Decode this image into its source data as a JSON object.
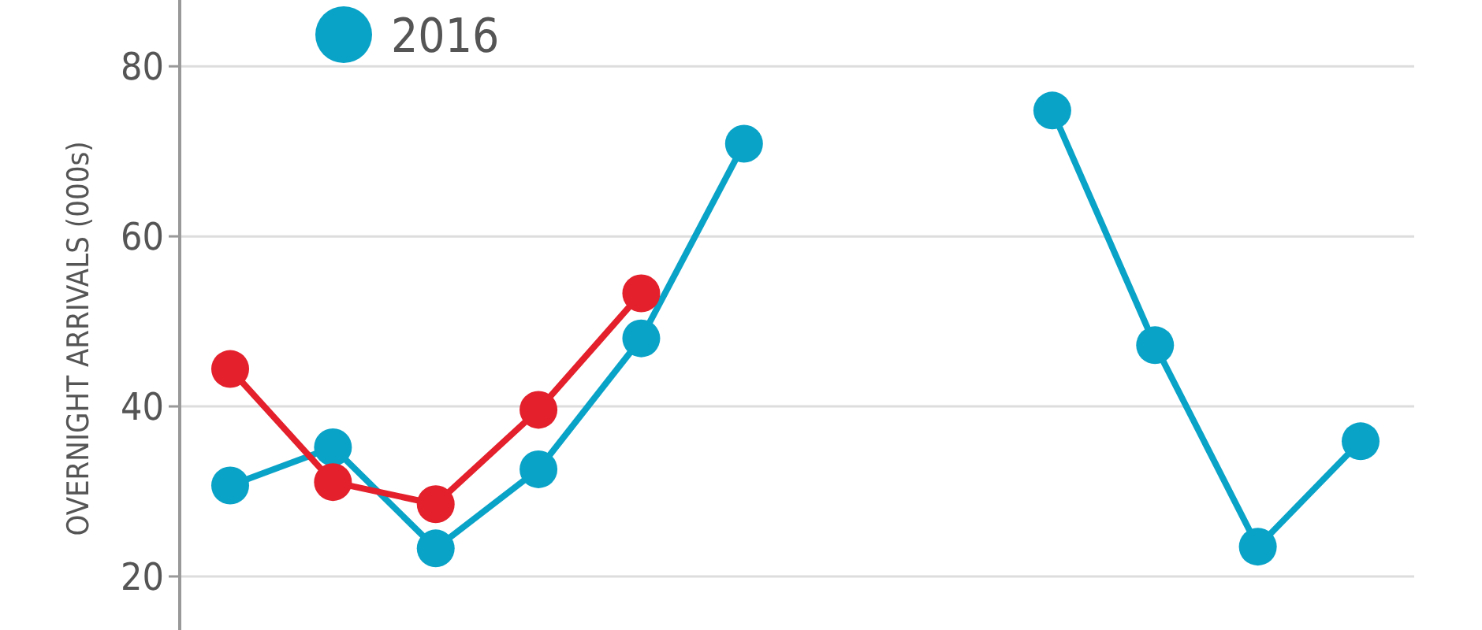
{
  "chart_data": {
    "type": "line",
    "ylabel": "OVERNIGHT ARRIVALS (000s)",
    "categories": [
      null,
      null,
      null,
      null,
      null,
      null,
      null,
      null,
      null,
      null,
      null,
      null
    ],
    "series": [
      {
        "name": "2016",
        "color": "#0aa3c8",
        "values": [
          30.7,
          35.2,
          23.3,
          32.6,
          48.0,
          70.9,
          null,
          null,
          74.8,
          47.2,
          23.5,
          35.9
        ]
      },
      {
        "color": "#e3202b",
        "values": [
          44.4,
          31.1,
          28.5,
          39.6,
          53.3,
          null,
          null,
          null,
          null,
          null,
          null,
          null
        ]
      }
    ],
    "ylim": [
      13.7,
      87.8
    ],
    "yticks": [
      20,
      40,
      60,
      80
    ],
    "grid": "y",
    "legend": "top left",
    "marker": "circle",
    "line_style": "solid"
  }
}
